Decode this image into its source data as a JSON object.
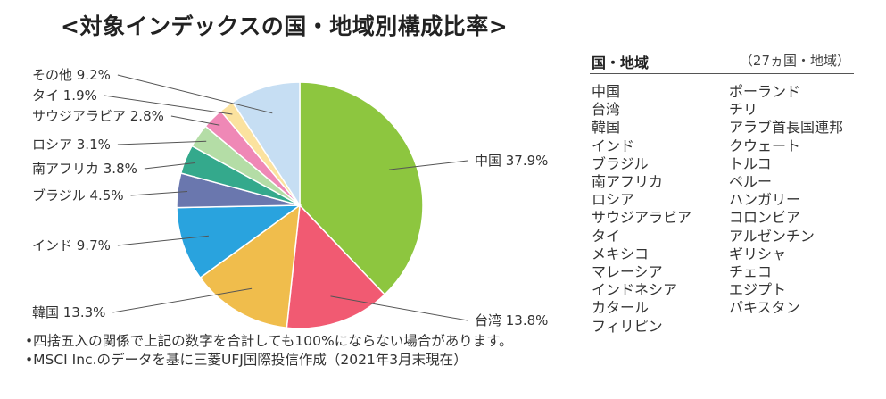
{
  "title": "<対象インデックスの国・地域別構成比率>",
  "chart_data": {
    "type": "pie",
    "title": "<対象インデックスの国・地域別構成比率>",
    "start": "top, clockwise",
    "slices": [
      {
        "label": "中国",
        "value": 37.9,
        "display": "中国 37.9%",
        "color": "#8dc63f"
      },
      {
        "label": "台湾",
        "value": 13.8,
        "display": "台湾 13.8%",
        "color": "#f15a72"
      },
      {
        "label": "韓国",
        "value": 13.3,
        "display": "韓国 13.3%",
        "color": "#f0bd4c"
      },
      {
        "label": "インド",
        "value": 9.7,
        "display": "インド 9.7%",
        "color": "#29a3de"
      },
      {
        "label": "ブラジル",
        "value": 4.5,
        "display": "ブラジル 4.5%",
        "color": "#6a77ae"
      },
      {
        "label": "南アフリカ",
        "value": 3.8,
        "display": "南アフリカ 3.8%",
        "color": "#34a98c"
      },
      {
        "label": "ロシア",
        "value": 3.1,
        "display": "ロシア 3.1%",
        "color": "#b4dda6"
      },
      {
        "label": "サウジアラビア",
        "value": 2.8,
        "display": "サウジアラビア 2.8%",
        "color": "#ef88b6"
      },
      {
        "label": "タイ",
        "value": 1.9,
        "display": "タイ 1.9%",
        "color": "#fbe29f"
      },
      {
        "label": "その他",
        "value": 9.2,
        "display": "その他 9.2%",
        "color": "#c6def3"
      }
    ]
  },
  "notes": [
    "•四捨五入の関係で上記の数字を合計しても100%にならない場合があります。",
    "•MSCI Inc.のデータを基に三菱UFJ国際投信作成（2021年3月末現在）"
  ],
  "countries_panel": {
    "heading": "国・地域",
    "count": "（27ヵ国・地域）",
    "column1": [
      "中国",
      "台湾",
      "韓国",
      "インド",
      "ブラジル",
      "南アフリカ",
      "ロシア",
      "サウジアラビア",
      "タイ",
      "メキシコ",
      "マレーシア",
      "インドネシア",
      "カタール",
      "フィリピン"
    ],
    "column2": [
      "ポーランド",
      "チリ",
      "アラブ首長国連邦",
      "クウェート",
      "トルコ",
      "ペルー",
      "ハンガリー",
      "コロンビア",
      "アルゼンチン",
      "ギリシャ",
      "チェコ",
      "エジプト",
      "パキスタン"
    ]
  }
}
